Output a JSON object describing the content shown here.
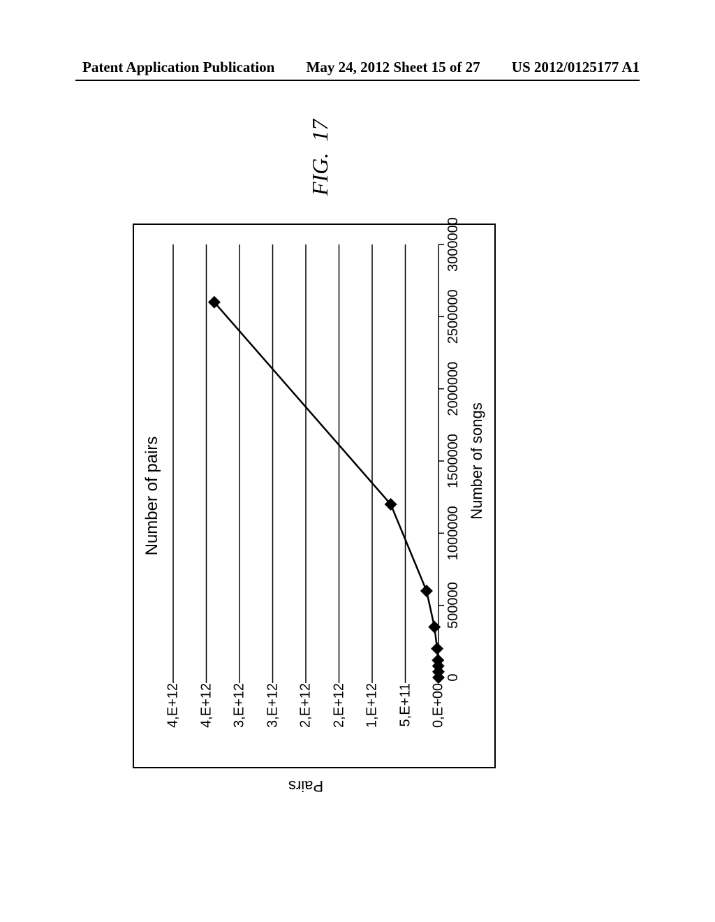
{
  "header": {
    "left": "Patent Application Publication",
    "center": "May 24, 2012  Sheet 15 of 27",
    "right": "US 2012/0125177 A1"
  },
  "figure_caption": {
    "prefix": "FIG.",
    "number": "17"
  },
  "chart": {
    "type": "line",
    "title": "Number of pairs",
    "title_fontsize": 24,
    "xlabel": "Number of songs",
    "ylabel": "Pairs",
    "label_fontsize": 22,
    "background_color": "#ffffff",
    "border_color": "#000000",
    "grid_color": "#000000",
    "grid_linewidth": 1.5,
    "line_color": "#000000",
    "line_width": 2.5,
    "marker_style": "diamond",
    "marker_size": 9,
    "marker_fill": "#000000",
    "xlim": [
      0,
      3000000
    ],
    "ylim": [
      0,
      4000000000000.0
    ],
    "xtick_step": 500000,
    "xtick_labels": [
      "0",
      "500000",
      "1000000",
      "1500000",
      "2000000",
      "2500000",
      "3000000"
    ],
    "ytick_values": [
      0,
      500000000000.0,
      1000000000000.0,
      1500000000000.0,
      2000000000000.0,
      2500000000000.0,
      3000000000000.0,
      3500000000000.0,
      4000000000000.0
    ],
    "ytick_labels": [
      "0,E+00",
      "5,E+11",
      "1,E+12",
      "2,E+12",
      "2,E+12",
      "3,E+12",
      "3,E+12",
      "4,E+12",
      "4,E+12"
    ],
    "tick_fontsize": 20,
    "data_x": [
      0,
      40000,
      80000,
      120000,
      200000,
      350000,
      600000,
      1200000,
      2600000
    ],
    "data_y": [
      0,
      800000000.0,
      3200000000.0,
      7200000000.0,
      20000000000.0,
      61000000000.0,
      180000000000.0,
      720000000000.0,
      3380000000000.0
    ]
  }
}
